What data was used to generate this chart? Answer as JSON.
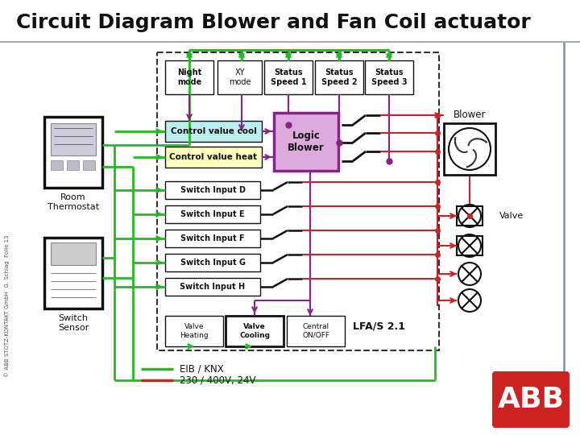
{
  "title": "Circuit Diagram Blower and Fan Coil actuator",
  "title_fontsize": 18,
  "background_color": "#ffffff",
  "green_color": "#22bb22",
  "red_color": "#cc2222",
  "purple_color": "#882288",
  "black_color": "#111111",
  "cyan_fill": "#bbeeee",
  "yellow_fill": "#ffffbb",
  "white_fill": "#ffffff",
  "gray_line": "#8899bb",
  "legend_eib": "EIB / KNX",
  "legend_230": "230 / 400V, 24V",
  "watermark": "© ABB STOTZ-KONTAKT GmbH  G. Schlag  Folie 13",
  "label_blower": "Blower",
  "label_valve": "Valve",
  "label_room_thermo": "Room\nThermostat",
  "label_switch_sensor": "Switch\nSensor",
  "label_logic_blower": "Logic\nBlower",
  "label_lfa": "LFA/S 2.1",
  "label_night_mode": "Night\nmode",
  "label_xy_mode": "XY\nmode",
  "label_status_speed1": "Status\nSpeed 1",
  "label_status_speed2": "Status\nSpeed 2",
  "label_status_speed3": "Status\nSpeed 3",
  "label_ctrl_cool": "Control value cool",
  "label_ctrl_heat": "Control value heat",
  "label_switch_D": "Switch Input D",
  "label_switch_E": "Switch Input E",
  "label_switch_F": "Switch Input F",
  "label_switch_G": "Switch Input G",
  "label_switch_H": "Switch Input H",
  "label_valve_heating": "Valve\nHeating",
  "label_valve_cooling": "Valve\nCooling",
  "label_central_onoff": "Central\nON/OFF"
}
